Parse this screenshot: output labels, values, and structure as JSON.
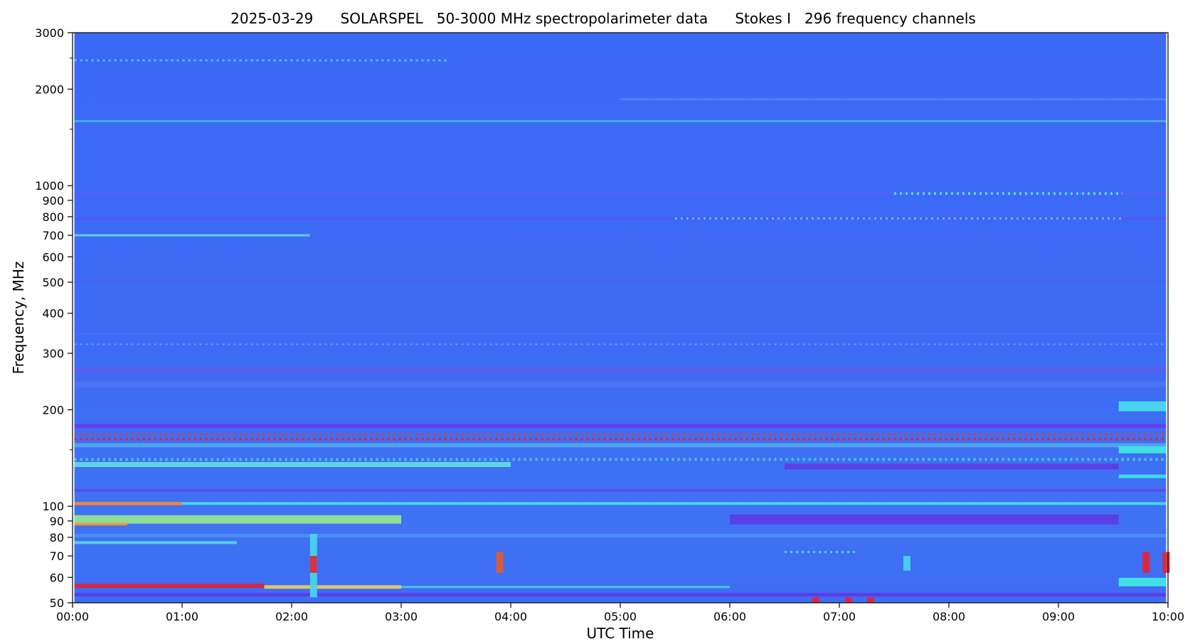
{
  "chart_data": {
    "type": "heatmap",
    "title": "2025-03-29      SOLARSPEL   50-3000 MHz spectropolarimeter data      Stokes I   296 frequency channels",
    "xlabel": "UTC Time",
    "ylabel": "Frequency, MHz",
    "y_scale": "log",
    "ylim": [
      50,
      3000
    ],
    "xlim": [
      "00:00",
      "10:00"
    ],
    "x_ticks": [
      "00:00",
      "01:00",
      "02:00",
      "03:00",
      "04:00",
      "05:00",
      "06:00",
      "07:00",
      "08:00",
      "09:00",
      "10:00"
    ],
    "y_ticks": [
      50,
      60,
      70,
      80,
      90,
      100,
      200,
      300,
      400,
      500,
      600,
      700,
      800,
      900,
      1000,
      2000,
      3000
    ],
    "y_minor_ticks": [
      150,
      1500,
      2500
    ],
    "colormap": "rainbow",
    "background_color": "#3c6af5",
    "data_range": {
      "start": "00:01",
      "end": "09:59"
    },
    "bands": [
      {
        "freq": 2460,
        "start": "00:00",
        "end": "03:25",
        "color": "#4bc7e6",
        "style": "dotted",
        "width": 3
      },
      {
        "freq": 1590,
        "start": "00:00",
        "end": "10:00",
        "color": "#48b8ef",
        "style": "glow",
        "width": 3
      },
      {
        "freq": 1860,
        "start": "05:00",
        "end": "10:00",
        "color": "#4e8df2",
        "style": "solid",
        "width": 2
      },
      {
        "freq": 945,
        "start": "00:00",
        "end": "10:00",
        "color": "#5a5ff0",
        "style": "solid",
        "width": 3
      },
      {
        "freq": 945,
        "start": "07:30",
        "end": "09:35",
        "color": "#3fe0e6",
        "style": "dotted",
        "width": 4
      },
      {
        "freq": 790,
        "start": "00:00",
        "end": "10:00",
        "color": "#5a55ef",
        "style": "solid",
        "width": 3
      },
      {
        "freq": 790,
        "start": "05:30",
        "end": "09:35",
        "color": "#45c6ee",
        "style": "dotted",
        "width": 3
      },
      {
        "freq": 700,
        "start": "00:00",
        "end": "02:10",
        "color": "#6fdcf2",
        "style": "glow",
        "width": 3
      },
      {
        "freq": 700,
        "start": "04:00",
        "end": "10:00",
        "color": "#4f5ff0",
        "style": "solid",
        "width": 2
      },
      {
        "freq": 500,
        "start": "00:00",
        "end": "10:00",
        "color": "#4a60f2",
        "style": "solid",
        "width": 3
      },
      {
        "freq": 345,
        "start": "00:00",
        "end": "10:00",
        "color": "#4d6ff0",
        "style": "solid",
        "width": 2
      },
      {
        "freq": 320,
        "start": "00:00",
        "end": "10:00",
        "color": "#57a6f0",
        "style": "dotted",
        "width": 2
      },
      {
        "freq": 265,
        "start": "00:00",
        "end": "10:00",
        "color": "#5460ee",
        "style": "solid",
        "width": 10
      },
      {
        "freq": 240,
        "start": "00:00",
        "end": "10:00",
        "color": "#4d73f3",
        "style": "solid",
        "width": 8
      },
      {
        "freq": 205,
        "start": "09:33",
        "end": "10:00",
        "color": "#48d4ea",
        "style": "solid",
        "width": 14
      },
      {
        "freq": 178,
        "start": "00:00",
        "end": "10:00",
        "color": "#6440ef",
        "style": "solid",
        "width": 6
      },
      {
        "freq": 168,
        "start": "00:00",
        "end": "10:00",
        "color": "#e03a3a",
        "style": "dotted",
        "width": 3
      },
      {
        "freq": 162,
        "start": "00:00",
        "end": "10:00",
        "color": "#e8222e",
        "style": "dotted",
        "width": 4
      },
      {
        "freq": 155,
        "start": "00:00",
        "end": "10:00",
        "color": "#4fa2f0",
        "style": "solid",
        "width": 6
      },
      {
        "freq": 150,
        "start": "09:33",
        "end": "10:00",
        "color": "#3fe0e6",
        "style": "solid",
        "width": 10
      },
      {
        "freq": 140,
        "start": "00:00",
        "end": "10:00",
        "color": "#4ec5ee",
        "style": "dotted",
        "width": 4
      },
      {
        "freq": 135,
        "start": "00:00",
        "end": "04:00",
        "color": "#66e8d8",
        "style": "glow",
        "width": 7
      },
      {
        "freq": 133,
        "start": "06:30",
        "end": "09:33",
        "color": "#5a3fe8",
        "style": "solid",
        "width": 8
      },
      {
        "freq": 124,
        "start": "09:33",
        "end": "10:00",
        "color": "#3fd8ea",
        "style": "solid",
        "width": 5
      },
      {
        "freq": 112,
        "start": "00:00",
        "end": "10:00",
        "color": "#5b4df0",
        "style": "solid",
        "width": 4
      },
      {
        "freq": 102,
        "start": "00:00",
        "end": "10:00",
        "color": "#44d7ea",
        "style": "solid",
        "width": 4
      },
      {
        "freq": 102,
        "start": "00:00",
        "end": "01:00",
        "color": "#ff7a2a",
        "style": "glow",
        "width": 5
      },
      {
        "freq": 91,
        "start": "00:00",
        "end": "03:00",
        "color": "#9cf08a",
        "style": "glow",
        "width": 12
      },
      {
        "freq": 91,
        "start": "06:00",
        "end": "09:33",
        "color": "#5a3fe8",
        "style": "solid",
        "width": 14
      },
      {
        "freq": 88,
        "start": "00:00",
        "end": "00:30",
        "color": "#ff9a2a",
        "style": "glow",
        "width": 4
      },
      {
        "freq": 81,
        "start": "00:00",
        "end": "10:00",
        "color": "#4a8ef2",
        "style": "solid",
        "width": 5
      },
      {
        "freq": 77,
        "start": "00:00",
        "end": "01:30",
        "color": "#5be0e0",
        "style": "glow",
        "width": 4
      },
      {
        "freq": 72,
        "start": "06:30",
        "end": "07:10",
        "color": "#49d7ea",
        "style": "dotted",
        "width": 3
      },
      {
        "freq": 58,
        "start": "09:33",
        "end": "10:00",
        "color": "#3fe0e6",
        "style": "solid",
        "width": 12
      },
      {
        "freq": 56.5,
        "start": "00:00",
        "end": "01:45",
        "color": "#ee1c2a",
        "style": "glow",
        "width": 6
      },
      {
        "freq": 56,
        "start": "01:45",
        "end": "03:00",
        "color": "#f4d84a",
        "style": "glow",
        "width": 5
      },
      {
        "freq": 56,
        "start": "03:00",
        "end": "06:00",
        "color": "#45c6ee",
        "style": "solid",
        "width": 3
      },
      {
        "freq": 53,
        "start": "00:00",
        "end": "10:00",
        "color": "#5a3fe8",
        "style": "solid",
        "width": 5
      }
    ],
    "bursts": [
      {
        "time": "02:12",
        "f_low": 52,
        "f_high": 82,
        "color": "#49d7ea"
      },
      {
        "time": "02:12",
        "f_low": 62,
        "f_high": 70,
        "color": "#e8222e"
      },
      {
        "time": "03:54",
        "f_low": 62,
        "f_high": 72,
        "color": "#e85a2a"
      },
      {
        "time": "07:37",
        "f_low": 63,
        "f_high": 70,
        "color": "#49d7ea"
      },
      {
        "time": "09:48",
        "f_low": 62,
        "f_high": 72,
        "color": "#e8222e"
      },
      {
        "time": "09:59",
        "f_low": 62,
        "f_high": 72,
        "color": "#e8222e"
      },
      {
        "time": "06:47",
        "f_low": 50,
        "f_high": 52,
        "color": "#e8222e"
      },
      {
        "time": "07:05",
        "f_low": 50,
        "f_high": 52,
        "color": "#e8222e"
      },
      {
        "time": "07:17",
        "f_low": 50,
        "f_high": 52,
        "color": "#e8222e"
      }
    ]
  }
}
